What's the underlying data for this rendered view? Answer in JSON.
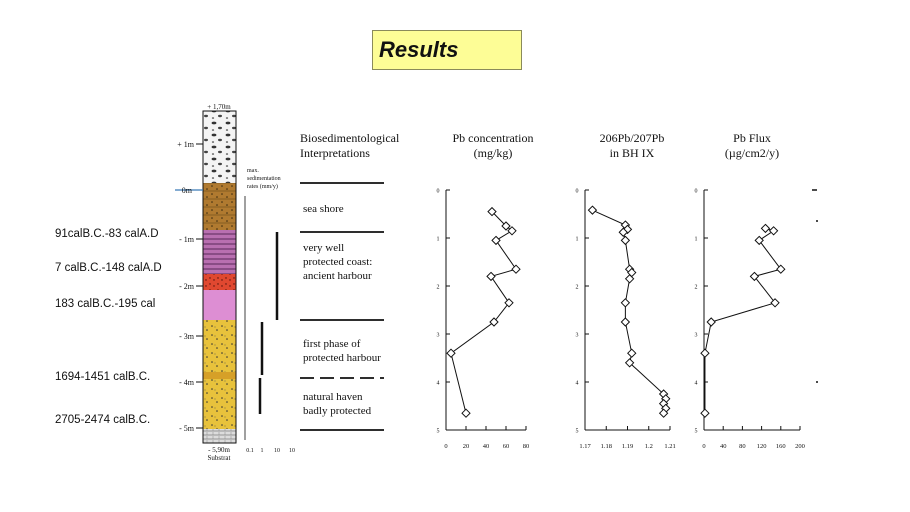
{
  "slide": {
    "title": "Results",
    "dates": [
      "91calB.C.-83 calA.D",
      "7 calB.C.-148 calA.D",
      "183 calB.C.-195 cal",
      "1694-1451 calB.C.",
      "2705-2474 calB.C."
    ],
    "column": {
      "top_label": "+ 1,70m",
      "bottom_label": "- 5,90m",
      "substrate_label": "Substrat",
      "depth_ticks": [
        "+ 1m",
        "0m",
        "- 1m",
        "- 2m",
        "- 3m",
        "- 4m",
        "- 5m"
      ]
    },
    "sedimentation": {
      "label_lines": [
        "max.",
        "sedimentation",
        "rates (mm/y)"
      ],
      "ticks": [
        "0.1",
        "1",
        "10",
        "10"
      ]
    },
    "interpretations": {
      "header_lines": [
        "Biosedimentological",
        "Interpretations"
      ],
      "zones": [
        {
          "lines": [
            "sea shore"
          ]
        },
        {
          "lines": [
            "very well",
            "protected coast:",
            "ancient harbour"
          ]
        },
        {
          "lines": [
            "first phase of",
            "protected harbour"
          ]
        },
        {
          "lines": [
            "natural haven",
            "badly protected"
          ]
        }
      ]
    },
    "colors": {
      "title_bg": "#fdfd96",
      "sand": "#e8c23c",
      "brown": "#b07a30",
      "purple_banded": "#b86fb0",
      "red": "#e04830",
      "magenta": "#dd8ed3"
    }
  },
  "chart_data": [
    {
      "type": "line",
      "title": "Pb concentration (mg/kg)",
      "x_ticks": [
        "0",
        "20",
        "40",
        "60",
        "80"
      ],
      "y_ticks": [
        "0",
        "1",
        "2",
        "3",
        "4",
        "5"
      ],
      "xlim": [
        0,
        80
      ],
      "ylim": [
        0,
        5
      ],
      "points": [
        [
          46,
          0.45
        ],
        [
          60,
          0.75
        ],
        [
          66,
          0.85
        ],
        [
          50,
          1.05
        ],
        [
          70,
          1.65
        ],
        [
          45,
          1.8
        ],
        [
          63,
          2.35
        ],
        [
          48,
          2.75
        ],
        [
          5,
          3.4
        ],
        [
          20,
          4.65
        ]
      ]
    },
    {
      "type": "line",
      "title": "206Pb/207Pb in BH IX",
      "x_ticks": [
        "1.17",
        "1.18",
        "1.19",
        "1.2",
        "1.21"
      ],
      "y_ticks": [
        "0",
        "1",
        "2",
        "3",
        "4",
        "5"
      ],
      "xlim": [
        1.17,
        1.21
      ],
      "ylim": [
        0,
        5
      ],
      "points": [
        [
          1.1735,
          0.42
        ],
        [
          1.189,
          0.73
        ],
        [
          1.19,
          0.82
        ],
        [
          1.188,
          0.88
        ],
        [
          1.189,
          1.05
        ],
        [
          1.191,
          1.65
        ],
        [
          1.192,
          1.72
        ],
        [
          1.191,
          1.85
        ],
        [
          1.189,
          2.35
        ],
        [
          1.189,
          2.75
        ],
        [
          1.192,
          3.4
        ],
        [
          1.191,
          3.6
        ],
        [
          1.207,
          4.25
        ],
        [
          1.208,
          4.35
        ],
        [
          1.207,
          4.45
        ],
        [
          1.208,
          4.55
        ],
        [
          1.207,
          4.65
        ]
      ]
    },
    {
      "type": "line",
      "title": "Pb Flux (µg/cm2/y)",
      "x_ticks": [
        "0",
        "40",
        "80",
        "120",
        "160",
        "200"
      ],
      "y_ticks": [
        "0",
        "1",
        "2",
        "3",
        "4",
        "5"
      ],
      "xlim": [
        0,
        200
      ],
      "ylim": [
        0,
        5
      ],
      "points": [
        [
          128,
          0.8
        ],
        [
          145,
          0.85
        ],
        [
          115,
          1.05
        ],
        [
          160,
          1.65
        ],
        [
          105,
          1.8
        ],
        [
          148,
          2.35
        ],
        [
          15,
          2.75
        ],
        [
          2,
          3.4
        ],
        [
          2,
          4.65
        ]
      ]
    }
  ]
}
